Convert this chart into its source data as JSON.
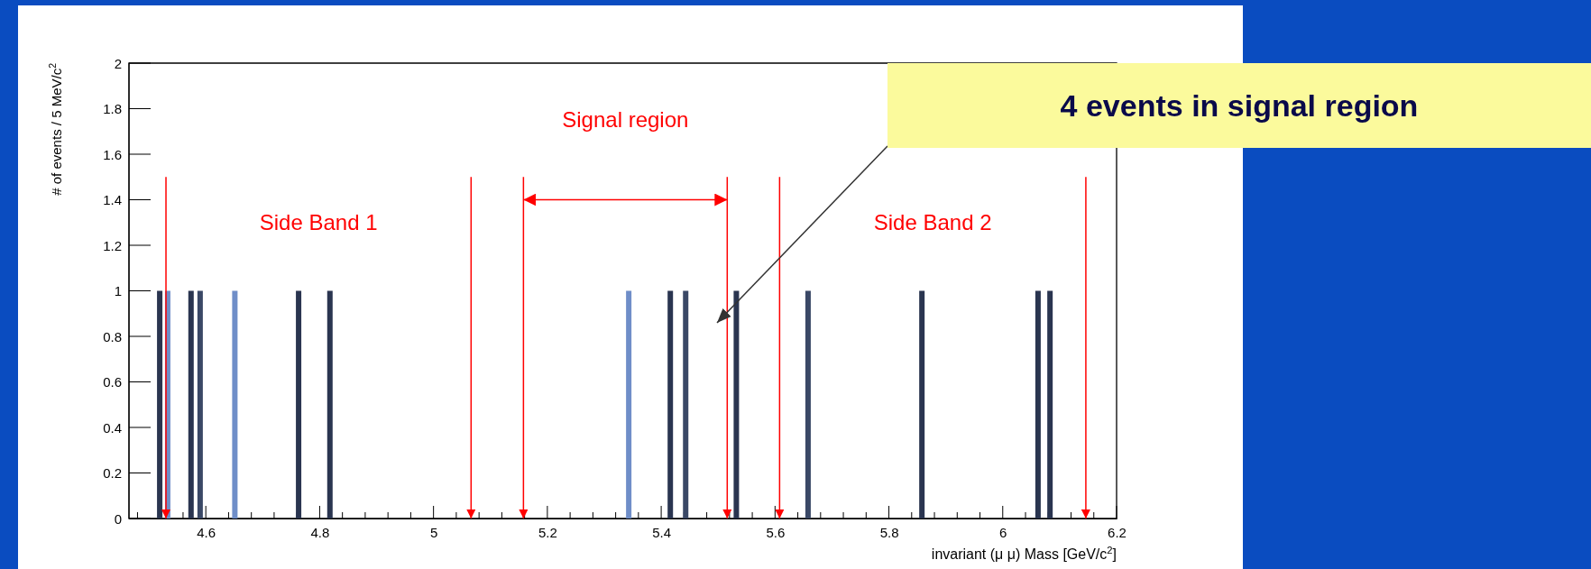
{
  "chart_data": {
    "type": "bar",
    "xlabel": "invariant (μ μ) Mass [GeV/c$^{2}$]",
    "ylabel": "# of events / 5 MeV/c$^{2}$",
    "x": [
      4.519,
      4.533,
      4.574,
      4.59,
      4.651,
      4.763,
      4.818,
      5.343,
      5.416,
      5.443,
      5.532,
      5.658,
      5.858,
      6.062,
      6.083
    ],
    "values": [
      1,
      1,
      1,
      1,
      1,
      1,
      1,
      1,
      1,
      1,
      1,
      1,
      1,
      1,
      1
    ],
    "colors": [
      "#2a3550",
      "#6f8ec8",
      "#2a3550",
      "#3a4866",
      "#6f8ec8",
      "#2a3550",
      "#2a3550",
      "#6f8ec8",
      "#2a3550",
      "#3a4866",
      "#2a3550",
      "#3a4866",
      "#2a3550",
      "#2a3550",
      "#2a3550"
    ],
    "xlim": [
      4.465,
      6.2
    ],
    "xticks": [
      4.6,
      4.8,
      5,
      5.2,
      5.4,
      5.6,
      5.8,
      6,
      6.2
    ],
    "ylim": [
      0,
      2
    ],
    "yticks": [
      0,
      0.2,
      0.4,
      0.6,
      0.8,
      1,
      1.2,
      1.4,
      1.6,
      1.8,
      2
    ],
    "ref_lines": [
      {
        "axis": "x",
        "value": 4.53,
        "color": "#ff0000"
      },
      {
        "axis": "x",
        "value": 5.066,
        "color": "#ff0000"
      },
      {
        "axis": "x",
        "value": 5.158,
        "color": "#ff0000"
      },
      {
        "axis": "x",
        "value": 5.516,
        "color": "#ff0000"
      },
      {
        "axis": "x",
        "value": 5.608,
        "color": "#ff0000"
      },
      {
        "axis": "x",
        "value": 6.146,
        "color": "#ff0000"
      }
    ],
    "annotations": [
      "Side Band 1",
      "Signal region",
      "Side Band 2",
      "4 events in signal region"
    ],
    "grid": false
  }
}
